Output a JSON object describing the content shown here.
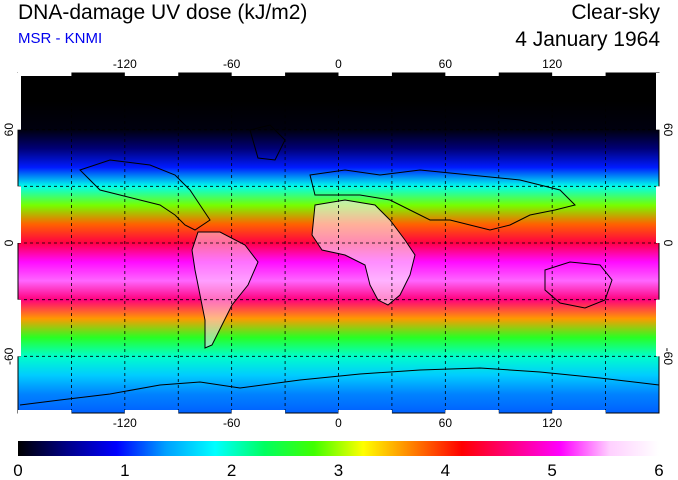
{
  "header": {
    "title": "DNA-damage UV dose (kJ/m2)",
    "subtitle": "MSR - KNMI",
    "mode": "Clear-sky",
    "date": "4 January 1964"
  },
  "map": {
    "projection": "equirectangular",
    "lon_range": [
      -180,
      180
    ],
    "lat_range": [
      -90,
      90
    ],
    "lon_ticks": [
      -120,
      -60,
      0,
      60,
      120
    ],
    "lat_ticks": [
      60,
      0,
      -60
    ],
    "lon_tick_labels": [
      "-120",
      "-60",
      "0",
      "60",
      "120"
    ],
    "lat_tick_labels": [
      "60",
      "0",
      "-60"
    ],
    "gridlines": "dashed",
    "gridline_lats": [
      60,
      30,
      0,
      -30,
      -60
    ],
    "gridline_lons": [
      -150,
      -120,
      -90,
      -60,
      -30,
      0,
      30,
      60,
      90,
      120,
      150
    ]
  },
  "colorbar": {
    "min": 0,
    "max": 6,
    "tick_labels": [
      "0",
      "1",
      "2",
      "3",
      "4",
      "5",
      "6"
    ],
    "stops": [
      "#000000",
      "#000088",
      "#0000ff",
      "#00a0ff",
      "#00ffff",
      "#00ff60",
      "#40ff00",
      "#ffff00",
      "#ff8000",
      "#ff0000",
      "#ff0080",
      "#ff00ff",
      "#ffd0ff",
      "#ffffff"
    ]
  },
  "chart_data": {
    "type": "heatmap",
    "quantity": "DNA-damage UV dose",
    "unit": "kJ/m2",
    "value_range": [
      0,
      6
    ],
    "zonal_profile": [
      {
        "lat": 90,
        "value": 0.0
      },
      {
        "lat": 75,
        "value": 0.0
      },
      {
        "lat": 60,
        "value": 0.05
      },
      {
        "lat": 50,
        "value": 0.4
      },
      {
        "lat": 40,
        "value": 1.0
      },
      {
        "lat": 30,
        "value": 1.9
      },
      {
        "lat": 20,
        "value": 2.9
      },
      {
        "lat": 10,
        "value": 3.8
      },
      {
        "lat": 0,
        "value": 4.4
      },
      {
        "lat": -10,
        "value": 5.1
      },
      {
        "lat": -20,
        "value": 5.3
      },
      {
        "lat": -30,
        "value": 4.6
      },
      {
        "lat": -40,
        "value": 3.6
      },
      {
        "lat": -50,
        "value": 2.6
      },
      {
        "lat": -60,
        "value": 2.0
      },
      {
        "lat": -70,
        "value": 1.6
      },
      {
        "lat": -80,
        "value": 1.3
      },
      {
        "lat": -90,
        "value": 1.2
      }
    ]
  }
}
